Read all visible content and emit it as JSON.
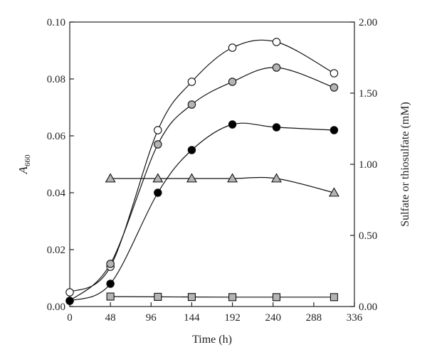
{
  "chart_data": {
    "type": "line",
    "xlabel": "Time (h)",
    "ylabel_left": {
      "main": "A",
      "sub": "660"
    },
    "ylabel_right": "Sulfate or thiosulfate (mM)",
    "xlim": [
      0,
      336
    ],
    "ylim_left": [
      0,
      0.1
    ],
    "ylim_right": [
      0,
      2.0
    ],
    "x_ticks": [
      "0",
      "48",
      "96",
      "144",
      "192",
      "240",
      "288",
      "336"
    ],
    "y_ticks_left": [
      "0.00",
      "0.02",
      "0.04",
      "0.06",
      "0.08",
      "0.10"
    ],
    "y_ticks_right": [
      "0.00",
      "0.50",
      "1.00",
      "1.50",
      "2.00"
    ],
    "grid": false,
    "series": [
      {
        "axis": "left",
        "marker": "circle",
        "fill": "#ffffff",
        "x": [
          0,
          48,
          104,
          144,
          192,
          244,
          312
        ],
        "y": [
          0.005,
          0.014,
          0.062,
          0.079,
          0.091,
          0.093,
          0.082
        ]
      },
      {
        "axis": "left",
        "marker": "circle",
        "fill": "#b4b4b4",
        "x": [
          0,
          48,
          104,
          144,
          192,
          244,
          312
        ],
        "y": [
          0.002,
          0.015,
          0.057,
          0.071,
          0.079,
          0.084,
          0.077
        ]
      },
      {
        "axis": "left",
        "marker": "circle",
        "fill": "#000000",
        "x": [
          0,
          48,
          104,
          144,
          192,
          244,
          312
        ],
        "y": [
          0.002,
          0.008,
          0.04,
          0.055,
          0.064,
          0.063,
          0.062
        ]
      },
      {
        "axis": "right",
        "marker": "triangle",
        "fill": "#b4b4b4",
        "x": [
          48,
          104,
          144,
          192,
          244,
          312
        ],
        "y": [
          0.9,
          0.9,
          0.9,
          0.9,
          0.9,
          0.8
        ]
      },
      {
        "axis": "right",
        "marker": "square",
        "fill": "#b4b4b4",
        "x": [
          48,
          104,
          144,
          192,
          244,
          312
        ],
        "y": [
          0.07,
          0.068,
          0.067,
          0.066,
          0.066,
          0.066
        ]
      }
    ]
  }
}
